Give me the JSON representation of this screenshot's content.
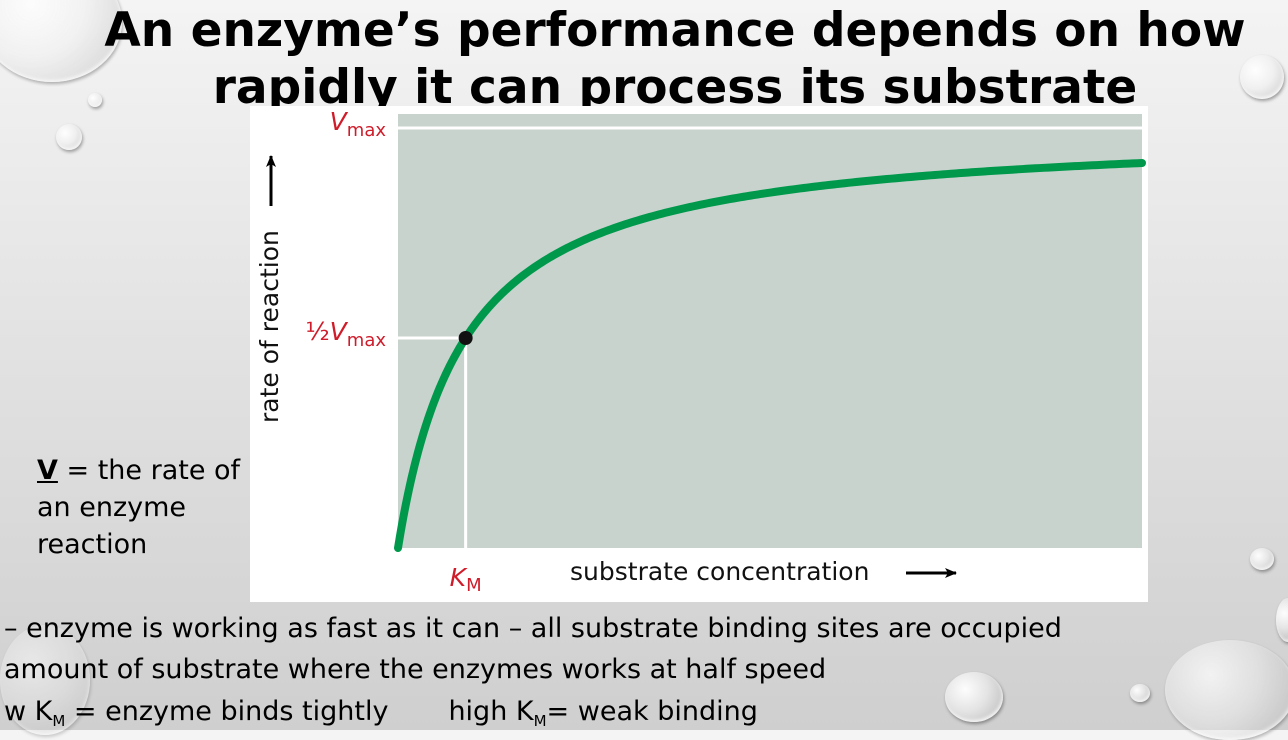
{
  "slide": {
    "title": "An enzyme’s performance depends on how rapidly it can process its substrate",
    "definition": {
      "symbol": "V",
      "text": " = the rate of an enzyme reaction"
    },
    "bullets": {
      "vmax_line": "– enzyme is working as fast as it can – all substrate binding sites are occupied",
      "km_line": "amount of substrate where the enzymes works at half speed",
      "binding_line": {
        "low_prefix": "w K",
        "low_sub": "M",
        "low_text": " = enzyme binds tightly",
        "high_prefix": "high K",
        "high_sub": "M",
        "high_text": "= weak binding"
      }
    }
  },
  "chart_data": {
    "type": "line",
    "title": "",
    "xlabel": "substrate concentration",
    "ylabel": "rate of reaction",
    "x_axis_arrow": "→",
    "y_axis_arrow": "→",
    "vmax_label": {
      "main": "V",
      "sub": "max"
    },
    "half_vmax_label": {
      "prefix": "½",
      "main": "V",
      "sub": "max"
    },
    "km_label": {
      "main": "K",
      "sub": "M"
    },
    "vmax": 1,
    "km": 1,
    "xlim": [
      0,
      11
    ],
    "ylim": [
      0,
      1
    ],
    "curve": "michaelis-menten",
    "series": [
      {
        "x": [
          0,
          0.1,
          0.25,
          0.5,
          0.75,
          1,
          1.5,
          2,
          3,
          4,
          5,
          6,
          7,
          8,
          9,
          10,
          11
        ],
        "values": [
          0,
          0.091,
          0.2,
          0.333,
          0.429,
          0.5,
          0.6,
          0.667,
          0.75,
          0.8,
          0.833,
          0.857,
          0.875,
          0.889,
          0.9,
          0.909,
          0.917
        ]
      }
    ],
    "marked_point": {
      "x": 1,
      "y": 0.5
    },
    "grid": false,
    "colors": {
      "plot_background": "#c8d3ce",
      "curve": "#00994c",
      "label_red": "#d01c2a",
      "guide_lines": "#ffffff",
      "point": "#111111"
    }
  }
}
